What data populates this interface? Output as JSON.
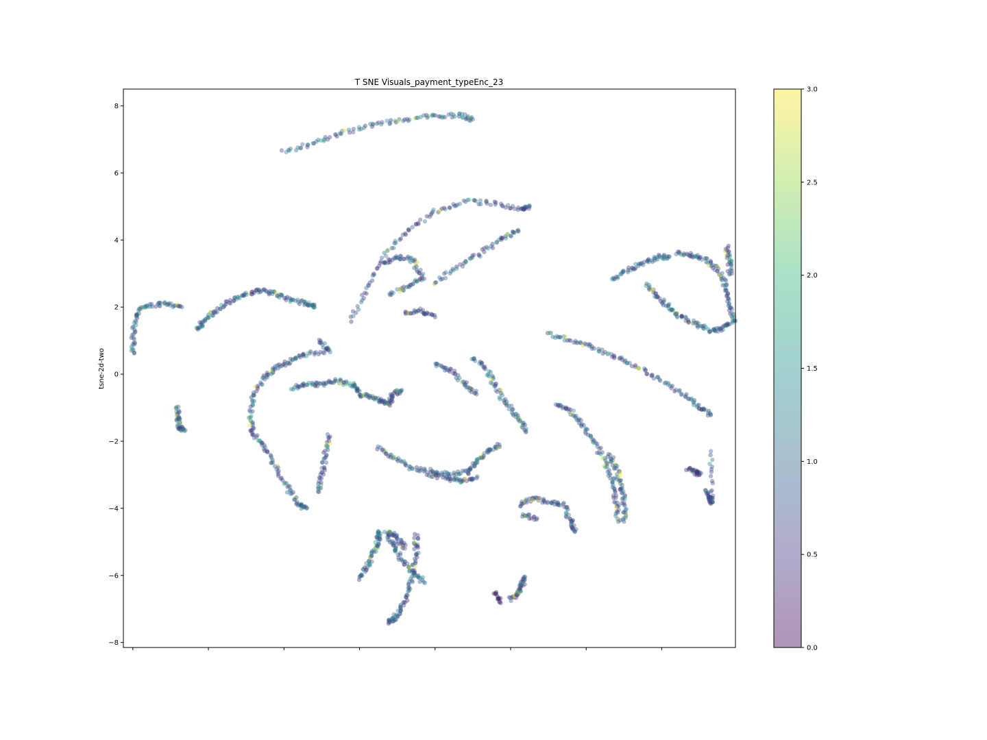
{
  "chart_data": {
    "type": "scatter",
    "title": "T SNE Visuals_payment_typeEnc_23",
    "xlabel": "",
    "ylabel": "tsne-2d-two",
    "ylim": [
      -8.15,
      8.5
    ],
    "xlim": [
      -6.65,
      9.55
    ],
    "y_ticks": [
      -8,
      -6,
      -4,
      -2,
      0,
      2,
      4,
      6,
      8
    ],
    "x_ticks": [
      -6.4,
      -4.4,
      -2.4,
      -0.4,
      1.6,
      3.6,
      5.6,
      7.6
    ],
    "x_tick_labels_shown": false,
    "grid": false,
    "marker_alpha": 0.4,
    "colormap": "viridis",
    "colorbar": {
      "range": [
        0.0,
        3.0
      ],
      "ticks": [
        "0.0",
        "0.5",
        "1.0",
        "1.5",
        "2.0",
        "2.5",
        "3.0"
      ]
    },
    "clusters": [
      {
        "points": [
          [
            -2.4,
            6.62
          ],
          [
            -1.6,
            6.9
          ],
          [
            -0.8,
            7.2
          ],
          [
            0.0,
            7.45
          ],
          [
            0.8,
            7.6
          ],
          [
            1.6,
            7.7
          ],
          [
            2.3,
            7.72
          ],
          [
            2.6,
            7.6
          ]
        ],
        "value": 1.1
      },
      {
        "points": [
          [
            -0.6,
            1.6
          ],
          [
            -0.2,
            2.6
          ],
          [
            0.3,
            3.6
          ],
          [
            0.9,
            4.3
          ],
          [
            1.6,
            4.85
          ],
          [
            2.4,
            5.15
          ],
          [
            3.2,
            5.1
          ],
          [
            3.9,
            4.9
          ],
          [
            4.1,
            5.0
          ]
        ],
        "value": 0.9
      },
      {
        "points": [
          [
            1.6,
            2.7
          ],
          [
            2.2,
            3.2
          ],
          [
            2.8,
            3.6
          ],
          [
            3.4,
            4.05
          ],
          [
            3.8,
            4.3
          ]
        ],
        "value": 1.0
      },
      {
        "points": [
          [
            0.8,
            1.8
          ],
          [
            1.2,
            1.9
          ],
          [
            1.6,
            1.7
          ]
        ],
        "value": 0.8
      },
      {
        "points": [
          [
            0.2,
            3.3
          ],
          [
            0.6,
            3.5
          ],
          [
            1.0,
            3.4
          ],
          [
            1.3,
            2.9
          ],
          [
            0.9,
            2.6
          ],
          [
            0.4,
            2.4
          ]
        ],
        "value": 0.9
      },
      {
        "points": [
          [
            -6.4,
            0.6
          ],
          [
            -6.4,
            1.2
          ],
          [
            -6.3,
            1.8
          ],
          [
            -6.0,
            2.05
          ],
          [
            -5.5,
            2.1
          ],
          [
            -5.1,
            2.0
          ]
        ],
        "value": 1.0
      },
      {
        "points": [
          [
            -4.7,
            1.3
          ],
          [
            -4.5,
            1.6
          ],
          [
            -4.2,
            1.9
          ],
          [
            -3.8,
            2.2
          ],
          [
            -3.4,
            2.4
          ],
          [
            -3.0,
            2.5
          ],
          [
            -2.6,
            2.4
          ],
          [
            -2.2,
            2.2
          ],
          [
            -1.8,
            2.1
          ],
          [
            -1.6,
            2.0
          ]
        ],
        "value": 1.1
      },
      {
        "points": [
          [
            -5.2,
            -1.0
          ],
          [
            -5.2,
            -1.3
          ],
          [
            -5.15,
            -1.6
          ],
          [
            -5.05,
            -1.65
          ]
        ],
        "value": 1.0
      },
      {
        "points": [
          [
            -1.5,
            1.0
          ],
          [
            -1.2,
            0.7
          ],
          [
            -1.8,
            0.6
          ],
          [
            -2.2,
            0.4
          ],
          [
            -2.6,
            0.2
          ],
          [
            -2.9,
            -0.1
          ],
          [
            -3.2,
            -0.6
          ],
          [
            -3.3,
            -1.3
          ],
          [
            -3.2,
            -1.8
          ],
          [
            -2.9,
            -2.2
          ],
          [
            -2.6,
            -2.8
          ],
          [
            -2.3,
            -3.4
          ],
          [
            -2.0,
            -3.9
          ],
          [
            -1.8,
            -4.0
          ]
        ],
        "value": 1.0
      },
      {
        "points": [
          [
            -1.2,
            -1.8
          ],
          [
            -1.3,
            -2.4
          ],
          [
            -1.4,
            -3.0
          ],
          [
            -1.5,
            -3.5
          ]
        ],
        "value": 0.8
      },
      {
        "points": [
          [
            -2.2,
            -0.4
          ],
          [
            -1.8,
            -0.3
          ],
          [
            -1.4,
            -0.3
          ],
          [
            -1.0,
            -0.2
          ],
          [
            -0.6,
            -0.3
          ],
          [
            -0.4,
            -0.5
          ]
        ],
        "value": 1.1
      },
      {
        "points": [
          [
            -0.4,
            -0.6
          ],
          [
            -0.1,
            -0.7
          ],
          [
            0.2,
            -0.8
          ],
          [
            0.4,
            -0.9
          ],
          [
            0.5,
            -0.6
          ],
          [
            0.7,
            -0.5
          ]
        ],
        "value": 1.0
      },
      {
        "points": [
          [
            1.6,
            0.3
          ],
          [
            2.0,
            0.1
          ],
          [
            2.4,
            -0.3
          ],
          [
            2.7,
            -0.6
          ]
        ],
        "value": 0.9
      },
      {
        "points": [
          [
            2.6,
            0.5
          ],
          [
            3.0,
            0.1
          ],
          [
            3.2,
            -0.4
          ],
          [
            3.5,
            -0.9
          ],
          [
            3.8,
            -1.3
          ],
          [
            4.0,
            -1.7
          ]
        ],
        "value": 1.1
      },
      {
        "points": [
          [
            0.1,
            -2.2
          ],
          [
            0.5,
            -2.5
          ],
          [
            1.0,
            -2.8
          ],
          [
            1.5,
            -2.9
          ],
          [
            2.0,
            -3.0
          ],
          [
            2.5,
            -2.9
          ],
          [
            2.7,
            -2.6
          ],
          [
            3.0,
            -2.3
          ],
          [
            3.3,
            -2.1
          ]
        ],
        "value": 1.0
      },
      {
        "points": [
          [
            1.4,
            -3.0
          ],
          [
            1.9,
            -3.1
          ],
          [
            2.3,
            -3.2
          ],
          [
            2.7,
            -3.1
          ]
        ],
        "value": 0.8
      },
      {
        "points": [
          [
            4.6,
            1.2
          ],
          [
            5.2,
            1.0
          ],
          [
            5.8,
            0.8
          ],
          [
            6.4,
            0.5
          ],
          [
            7.0,
            0.2
          ],
          [
            7.6,
            -0.2
          ],
          [
            8.2,
            -0.6
          ],
          [
            8.6,
            -1.0
          ],
          [
            8.9,
            -1.2
          ]
        ],
        "value": 1.0
      },
      {
        "points": [
          [
            6.3,
            2.8
          ],
          [
            6.7,
            3.1
          ],
          [
            7.1,
            3.3
          ],
          [
            7.5,
            3.5
          ],
          [
            7.8,
            3.5
          ]
        ],
        "value": 1.1
      },
      {
        "points": [
          [
            8.0,
            3.6
          ],
          [
            8.4,
            3.55
          ],
          [
            8.8,
            3.4
          ],
          [
            9.1,
            3.1
          ],
          [
            9.3,
            2.6
          ],
          [
            9.4,
            2.1
          ],
          [
            9.5,
            1.6
          ],
          [
            9.2,
            1.35
          ],
          [
            8.9,
            1.3
          ],
          [
            8.5,
            1.5
          ],
          [
            8.1,
            1.7
          ],
          [
            7.8,
            2.0
          ],
          [
            7.5,
            2.3
          ],
          [
            7.2,
            2.7
          ]
        ],
        "value": 1.0
      },
      {
        "points": [
          [
            9.3,
            3.8
          ],
          [
            9.4,
            3.4
          ],
          [
            9.4,
            3.0
          ]
        ],
        "value": 0.9
      },
      {
        "points": [
          [
            4.8,
            -0.9
          ],
          [
            5.2,
            -1.1
          ],
          [
            5.5,
            -1.5
          ],
          [
            5.8,
            -2.0
          ],
          [
            6.1,
            -2.6
          ],
          [
            6.3,
            -3.2
          ],
          [
            6.4,
            -3.8
          ],
          [
            6.45,
            -4.4
          ]
        ],
        "value": 1.0
      },
      {
        "points": [
          [
            6.2,
            -2.4
          ],
          [
            6.4,
            -2.8
          ],
          [
            6.5,
            -3.3
          ],
          [
            6.6,
            -3.8
          ],
          [
            6.6,
            -4.4
          ]
        ],
        "value": 1.0
      },
      {
        "points": [
          [
            3.8,
            -3.9
          ],
          [
            4.2,
            -3.7
          ],
          [
            4.6,
            -3.8
          ],
          [
            5.0,
            -3.9
          ],
          [
            5.2,
            -4.4
          ],
          [
            5.3,
            -4.7
          ]
        ],
        "value": 0.9
      },
      {
        "points": [
          [
            3.9,
            -4.2
          ],
          [
            4.3,
            -4.3
          ]
        ],
        "value": 0.8
      },
      {
        "points": [
          [
            8.8,
            -3.5
          ],
          [
            8.9,
            -3.7
          ],
          [
            8.9,
            -3.85
          ],
          [
            8.9,
            -2.3
          ]
        ],
        "value": 1.0
      },
      {
        "points": [
          [
            8.3,
            -2.8
          ],
          [
            8.5,
            -2.9
          ],
          [
            8.6,
            -3.0
          ]
        ],
        "value": 0.6
      },
      {
        "points": [
          [
            -0.4,
            -6.1
          ],
          [
            -0.2,
            -5.7
          ],
          [
            0.0,
            -5.3
          ],
          [
            0.1,
            -4.9
          ],
          [
            0.1,
            -4.7
          ]
        ],
        "value": 1.1
      },
      {
        "points": [
          [
            0.3,
            -4.7
          ],
          [
            0.5,
            -5.1
          ],
          [
            0.7,
            -5.5
          ],
          [
            1.0,
            -5.9
          ],
          [
            1.3,
            -6.2
          ]
        ],
        "value": 1.0
      },
      {
        "points": [
          [
            1.1,
            -4.8
          ],
          [
            1.1,
            -5.3
          ],
          [
            1.0,
            -5.9
          ],
          [
            0.9,
            -6.5
          ],
          [
            0.7,
            -7.0
          ],
          [
            0.5,
            -7.3
          ],
          [
            0.4,
            -7.4
          ]
        ],
        "value": 0.9
      },
      {
        "points": [
          [
            0.4,
            -4.7
          ],
          [
            0.6,
            -4.9
          ],
          [
            0.8,
            -5.2
          ]
        ],
        "value": 0.8
      },
      {
        "points": [
          [
            3.6,
            -6.7
          ],
          [
            3.8,
            -6.55
          ],
          [
            3.9,
            -6.3
          ],
          [
            3.95,
            -6.05
          ]
        ],
        "value": 0.9
      },
      {
        "points": [
          [
            3.2,
            -6.5
          ],
          [
            3.3,
            -6.8
          ]
        ],
        "value": 0.4
      }
    ]
  }
}
